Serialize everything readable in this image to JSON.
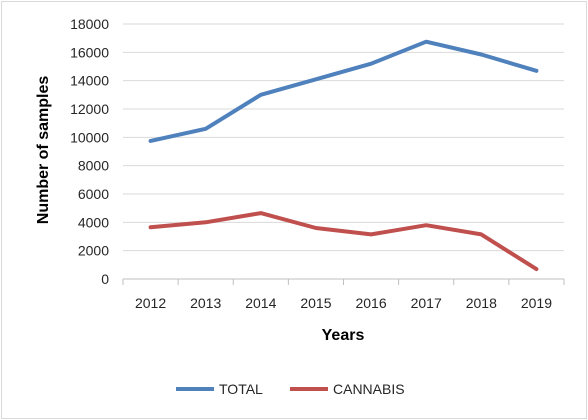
{
  "chart_data": {
    "type": "line",
    "title": "",
    "xlabel": "Years",
    "ylabel": "Number of samples",
    "categories": [
      "2012",
      "2013",
      "2014",
      "2015",
      "2016",
      "2017",
      "2018",
      "2019"
    ],
    "ylim": [
      0,
      18000
    ],
    "yticks": [
      0,
      2000,
      4000,
      6000,
      8000,
      10000,
      12000,
      14000,
      16000,
      18000
    ],
    "grid": true,
    "legend_position": "bottom",
    "series": [
      {
        "name": "TOTAL",
        "color": "#4f81bd",
        "values": [
          9750,
          10600,
          13000,
          14100,
          15200,
          16750,
          15850,
          14700
        ]
      },
      {
        "name": "CANNABIS",
        "color": "#c0504d",
        "values": [
          3650,
          4000,
          4650,
          3600,
          3150,
          3800,
          3150,
          700
        ]
      }
    ]
  }
}
